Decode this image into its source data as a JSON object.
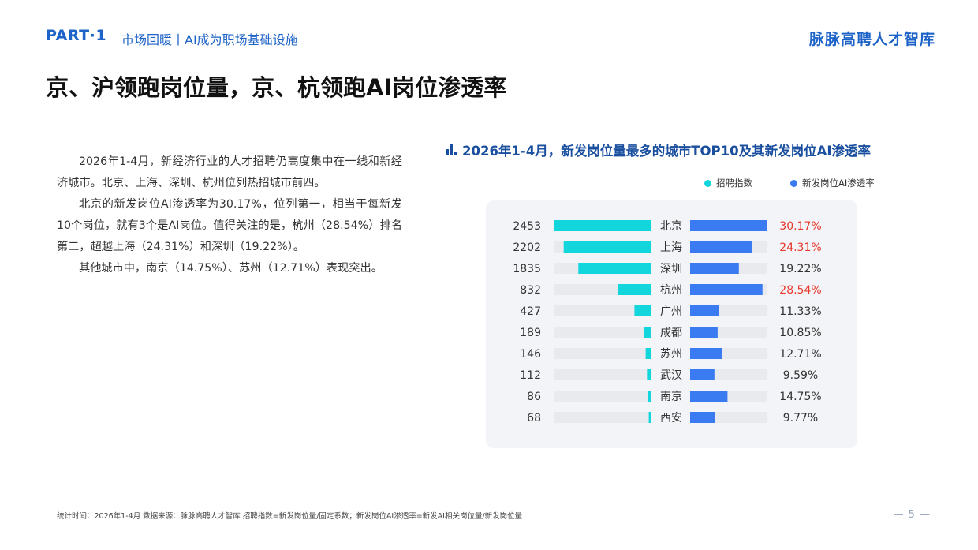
{
  "header": {
    "part_label": "PART·1",
    "section_title": "市场回暖丨AI成为职场基础设施",
    "brand": "脉脉高聘人才智库"
  },
  "headline": "京、沪领跑岗位量，京、杭领跑AI岗位渗透率",
  "body": {
    "paragraphs": [
      "2026年1-4月，新经济行业的人才招聘仍高度集中在一线和新经济城市。北京、上海、深圳、杭州位列热招城市前四。",
      "北京的新发岗位AI渗透率为30.17%，位列第一，相当于每新发10个岗位，就有3个是AI岗位。值得关注的是，杭州（28.54%）排名第二，超越上海（24.31%）和深圳（19.22%）。",
      "其他城市中，南京（14.75%）、苏州（12.71%）表现突出。"
    ]
  },
  "chart_data": {
    "type": "bar",
    "title": "2026年1-4月，新发岗位量最多的城市TOP10及其新发岗位AI渗透率",
    "categories": [
      "北京",
      "上海",
      "深圳",
      "杭州",
      "广州",
      "成都",
      "苏州",
      "武汉",
      "南京",
      "西安"
    ],
    "series": [
      {
        "name": "招聘指数",
        "values": [
          2453,
          2202,
          1835,
          832,
          427,
          189,
          146,
          112,
          86,
          68
        ],
        "color": "#12d6dc"
      },
      {
        "name": "新发岗位AI渗透率",
        "values": [
          30.17,
          24.31,
          19.22,
          28.54,
          11.33,
          10.85,
          12.71,
          9.59,
          14.75,
          9.77
        ],
        "color": "#3b7bf2"
      }
    ],
    "value_labels": {
      "index": [
        "2453",
        "2202",
        "1835",
        "832",
        "427",
        "189",
        "146",
        "112",
        "86",
        "68"
      ],
      "rate": [
        "30.17%",
        "24.31%",
        "19.22%",
        "28.54%",
        "11.33%",
        "10.85%",
        "12.71%",
        "9.59%",
        "14.75%",
        "9.77%"
      ]
    },
    "highlight_color": "#e8382c",
    "highlighted_categories": [
      "北京",
      "上海",
      "杭州"
    ],
    "track_color": "#e8eaee",
    "legend_position": "top-right"
  },
  "footer": {
    "text": "统计时间：2026年1-4月      数据来源：脉脉高聘人才智库      招聘指数=新发岗位量/固定系数；新发岗位AI渗透率=新发AI相关岗位量/新发岗位量",
    "page_number": "— 5 —"
  }
}
